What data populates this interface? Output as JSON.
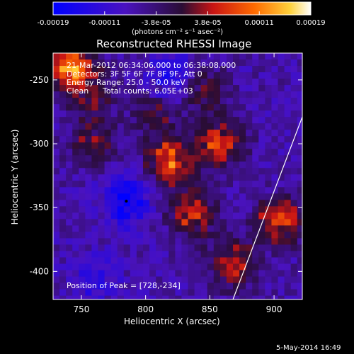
{
  "chart_data": {
    "type": "heatmap",
    "title": "Reconstructed RHESSI Image",
    "xlabel": "Heliocentric X (arcsec)",
    "ylabel": "Heliocentric Y (arcsec)",
    "xlim": [
      728,
      922
    ],
    "ylim": [
      -422,
      -229
    ],
    "x_ticks": [
      750,
      800,
      850,
      900
    ],
    "y_ticks": [
      -250,
      -300,
      -350,
      -400
    ],
    "colorbar": {
      "units": "(photons cm⁻² s⁻¹ asec⁻²)",
      "range": [
        -0.00019,
        0.00019
      ],
      "tick_labels": [
        "-0.00019",
        "-0.00011",
        "-3.8e-05",
        "3.8e-05",
        "0.00011",
        "0.00019"
      ]
    },
    "annotations": {
      "time_range": "21-Mar-2012 06:34:06.000 to 06:38:08.000",
      "detectors": "Detectors: 3F 5F 6F 7F 8F 9F, Att 0",
      "energy": "Energy Range: 25.0 - 50.0 keV",
      "clean": "Clean",
      "total_counts": "Total counts: 6.05E+03",
      "peak": "Position of Peak = [728,-234]"
    },
    "peak_position": [
      728,
      -234
    ],
    "limb_line": [
      [
        868,
        -422
      ],
      [
        922,
        -279
      ]
    ],
    "bright_regions": [
      {
        "x": 742,
        "y": -240,
        "intensity": 0.00019
      },
      {
        "x": 820,
        "y": -314,
        "intensity": 0.00015
      },
      {
        "x": 858,
        "y": -300,
        "intensity": 0.00013
      },
      {
        "x": 836,
        "y": -355,
        "intensity": 0.00012
      },
      {
        "x": 868,
        "y": -395,
        "intensity": 0.00012
      },
      {
        "x": 905,
        "y": -360,
        "intensity": 0.00014
      },
      {
        "x": 760,
        "y": -300,
        "intensity": 8e-05
      },
      {
        "x": 845,
        "y": -258,
        "intensity": 8e-05
      },
      {
        "x": 808,
        "y": -275,
        "intensity": 7e-05
      },
      {
        "x": 760,
        "y": -265,
        "intensity": 6e-05
      }
    ],
    "dark_regions": [
      {
        "x": 785,
        "y": -345,
        "intensity": -0.00011
      },
      {
        "x": 820,
        "y": -248,
        "intensity": -9e-05
      },
      {
        "x": 760,
        "y": -405,
        "intensity": -6e-05
      }
    ]
  },
  "footer": {
    "timestamp": "5-May-2014 16:49"
  }
}
